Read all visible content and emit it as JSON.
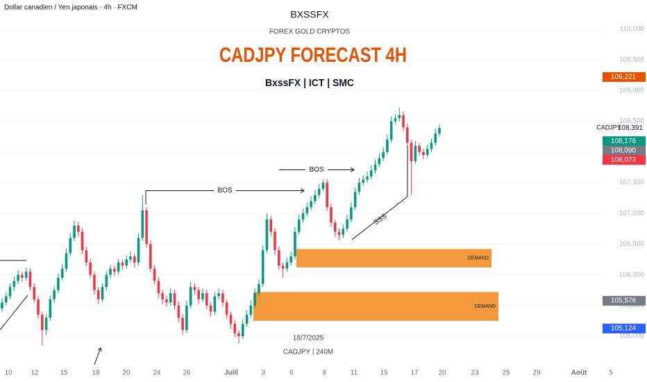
{
  "chart_data": {
    "type": "candlestick",
    "symbol_line": "Dollar canadien / Yen japonais · 4h · FXCM",
    "title": "CADJPY FORECAST 4H",
    "brand": "BXSSFX",
    "brand_subtitle": "FOREX GOLD CRYPTOS",
    "subtitle": "BxssFX | ICT | SMC",
    "footer_date": "18/7/2025",
    "footer_symbol": "CADJPY | 240M",
    "up_color": "#089981",
    "down_color": "#f23645",
    "grid": true,
    "ylim": [
      104.593,
      110.475
    ],
    "yticks": [
      {
        "value": 105,
        "label": "105,000"
      },
      {
        "value": 105.5,
        "label": "105,500"
      },
      {
        "value": 106,
        "label": "106,000"
      },
      {
        "value": 106.5,
        "label": "106,500"
      },
      {
        "value": 107,
        "label": "107,000"
      },
      {
        "value": 107.5,
        "label": "107,500"
      },
      {
        "value": 108,
        "label": "108,000"
      },
      {
        "value": 108.5,
        "label": "108,500"
      },
      {
        "value": 109,
        "label": "109,000"
      },
      {
        "value": 109.5,
        "label": "109,500"
      },
      {
        "value": 110,
        "label": "110,000"
      }
    ],
    "x_labels": [
      "10",
      "12",
      "15",
      "18",
      "20",
      "24",
      "26",
      "Juill",
      "3",
      "6",
      "9",
      "11",
      "15",
      "17",
      "20",
      "23",
      "25",
      "29",
      "Août",
      "5"
    ],
    "ohlc": [
      [
        105.45,
        105.62,
        105.4,
        105.55
      ],
      [
        105.55,
        105.72,
        105.5,
        105.65
      ],
      [
        105.65,
        105.86,
        105.6,
        105.8
      ],
      [
        105.8,
        105.97,
        105.74,
        105.9
      ],
      [
        105.9,
        106.08,
        105.85,
        106.0
      ],
      [
        106.0,
        106.05,
        105.88,
        105.95
      ],
      [
        105.95,
        106.12,
        105.9,
        106.05
      ],
      [
        106.05,
        106.1,
        105.74,
        105.8
      ],
      [
        105.8,
        105.86,
        105.54,
        105.6
      ],
      [
        105.6,
        105.66,
        105.28,
        105.35
      ],
      [
        105.35,
        105.4,
        104.85,
        105.1
      ],
      [
        105.1,
        105.36,
        105.02,
        105.3
      ],
      [
        105.3,
        105.66,
        105.25,
        105.6
      ],
      [
        105.6,
        105.82,
        105.54,
        105.75
      ],
      [
        105.75,
        106.02,
        105.7,
        105.95
      ],
      [
        105.95,
        106.18,
        105.9,
        106.1
      ],
      [
        106.1,
        106.42,
        106.05,
        106.35
      ],
      [
        106.35,
        106.68,
        106.3,
        106.6
      ],
      [
        106.6,
        106.88,
        106.55,
        106.8
      ],
      [
        106.8,
        106.86,
        106.62,
        106.7
      ],
      [
        106.7,
        106.76,
        106.34,
        106.4
      ],
      [
        106.4,
        106.46,
        106.14,
        106.2
      ],
      [
        106.2,
        106.26,
        105.94,
        106.0
      ],
      [
        106.0,
        106.06,
        105.68,
        105.75
      ],
      [
        105.75,
        105.8,
        105.52,
        105.6
      ],
      [
        105.6,
        105.86,
        105.55,
        105.8
      ],
      [
        105.8,
        106.06,
        105.75,
        106.0
      ],
      [
        106.0,
        106.16,
        105.94,
        106.1
      ],
      [
        106.1,
        106.15,
        105.98,
        106.05
      ],
      [
        106.05,
        106.26,
        106.0,
        106.2
      ],
      [
        106.2,
        106.25,
        106.08,
        106.15
      ],
      [
        106.15,
        106.32,
        106.1,
        106.25
      ],
      [
        106.25,
        106.38,
        106.2,
        106.3
      ],
      [
        106.3,
        106.35,
        106.12,
        106.2
      ],
      [
        106.2,
        106.68,
        106.15,
        106.6
      ],
      [
        106.6,
        107.3,
        106.55,
        107.05
      ],
      [
        107.05,
        107.1,
        106.44,
        106.5
      ],
      [
        106.5,
        106.56,
        106.04,
        106.1
      ],
      [
        106.1,
        106.16,
        105.84,
        105.9
      ],
      [
        105.9,
        105.96,
        105.62,
        105.7
      ],
      [
        105.7,
        105.76,
        105.52,
        105.6
      ],
      [
        105.6,
        105.66,
        105.48,
        105.55
      ],
      [
        105.55,
        105.78,
        105.5,
        105.7
      ],
      [
        105.7,
        105.76,
        105.44,
        105.5
      ],
      [
        105.5,
        105.56,
        105.22,
        105.3
      ],
      [
        105.3,
        105.36,
        105.02,
        105.1
      ],
      [
        105.1,
        105.58,
        105.05,
        105.5
      ],
      [
        105.5,
        105.88,
        105.45,
        105.8
      ],
      [
        105.8,
        105.86,
        105.68,
        105.75
      ],
      [
        105.75,
        105.8,
        105.52,
        105.6
      ],
      [
        105.6,
        105.78,
        105.55,
        105.7
      ],
      [
        105.7,
        105.76,
        105.44,
        105.5
      ],
      [
        105.5,
        105.56,
        105.32,
        105.4
      ],
      [
        105.4,
        105.72,
        105.35,
        105.65
      ],
      [
        105.65,
        105.78,
        105.6,
        105.7
      ],
      [
        105.7,
        105.76,
        105.48,
        105.55
      ],
      [
        105.55,
        105.6,
        105.28,
        105.35
      ],
      [
        105.35,
        105.4,
        105.12,
        105.2
      ],
      [
        105.2,
        105.26,
        104.98,
        105.05
      ],
      [
        105.05,
        105.1,
        104.88,
        105.0
      ],
      [
        105.0,
        105.28,
        104.95,
        105.2
      ],
      [
        105.2,
        105.42,
        105.15,
        105.35
      ],
      [
        105.35,
        105.58,
        105.3,
        105.5
      ],
      [
        105.5,
        105.78,
        105.45,
        105.7
      ],
      [
        105.7,
        105.92,
        105.65,
        105.85
      ],
      [
        105.85,
        106.48,
        105.8,
        106.4
      ],
      [
        106.4,
        107.0,
        106.35,
        106.9
      ],
      [
        106.9,
        106.96,
        106.62,
        106.7
      ],
      [
        106.7,
        106.76,
        106.32,
        106.4
      ],
      [
        106.4,
        106.46,
        106.08,
        106.15
      ],
      [
        106.15,
        106.2,
        105.95,
        106.1
      ],
      [
        106.1,
        106.28,
        106.05,
        106.2
      ],
      [
        106.2,
        106.38,
        106.15,
        106.3
      ],
      [
        106.3,
        106.78,
        106.25,
        106.7
      ],
      [
        106.7,
        106.98,
        106.65,
        106.9
      ],
      [
        106.9,
        107.08,
        106.85,
        107.0
      ],
      [
        107.0,
        107.18,
        106.95,
        107.1
      ],
      [
        107.1,
        107.28,
        107.05,
        107.2
      ],
      [
        107.2,
        107.38,
        107.15,
        107.3
      ],
      [
        107.3,
        107.48,
        107.25,
        107.4
      ],
      [
        107.4,
        107.55,
        107.35,
        107.5
      ],
      [
        107.5,
        107.56,
        107.04,
        107.1
      ],
      [
        107.1,
        107.16,
        106.78,
        106.85
      ],
      [
        106.85,
        106.9,
        106.62,
        106.7
      ],
      [
        106.7,
        106.76,
        106.56,
        106.65
      ],
      [
        106.65,
        106.82,
        106.6,
        106.75
      ],
      [
        106.75,
        106.98,
        106.7,
        106.9
      ],
      [
        106.9,
        107.18,
        106.85,
        107.1
      ],
      [
        107.1,
        107.42,
        107.05,
        107.35
      ],
      [
        107.35,
        107.58,
        107.3,
        107.5
      ],
      [
        107.5,
        107.62,
        107.45,
        107.55
      ],
      [
        107.55,
        107.68,
        107.5,
        107.6
      ],
      [
        107.6,
        107.78,
        107.55,
        107.7
      ],
      [
        107.7,
        107.88,
        107.65,
        107.8
      ],
      [
        107.8,
        107.98,
        107.75,
        107.9
      ],
      [
        107.9,
        108.08,
        107.85,
        108.0
      ],
      [
        108.0,
        108.28,
        107.95,
        108.2
      ],
      [
        108.2,
        108.58,
        108.15,
        108.5
      ],
      [
        108.5,
        108.62,
        108.45,
        108.55
      ],
      [
        108.55,
        108.72,
        108.5,
        108.6
      ],
      [
        108.6,
        108.66,
        108.34,
        108.4
      ],
      [
        108.4,
        108.46,
        108.08,
        108.15
      ],
      [
        108.15,
        108.2,
        107.3,
        107.85
      ],
      [
        107.85,
        108.18,
        107.8,
        108.1
      ],
      [
        108.1,
        108.15,
        107.94,
        108.0
      ],
      [
        108.0,
        108.05,
        107.88,
        107.95
      ],
      [
        107.95,
        108.12,
        107.9,
        108.05
      ],
      [
        108.05,
        108.22,
        108.0,
        108.15
      ],
      [
        108.15,
        108.38,
        108.1,
        108.3
      ],
      [
        108.3,
        108.45,
        108.25,
        108.39
      ]
    ],
    "zones": [
      {
        "label": "DEMAND",
        "top": 106.42,
        "bottom": 106.12,
        "color": "#f59a3c"
      },
      {
        "label": "DEMAND",
        "top": 105.72,
        "bottom": 105.25,
        "color": "#f59a3c"
      }
    ],
    "bos": [
      {
        "label": "BOS",
        "level": 107.37
      },
      {
        "label": "BOS",
        "level": 107.71
      }
    ],
    "sss_label": "SSS",
    "price_tags": [
      {
        "value": 109.221,
        "label": "109,221",
        "color": "#e65100"
      },
      {
        "value": 108.391,
        "label": "108,391",
        "name": "CADJPY"
      },
      {
        "value": 108.176,
        "label": "108,176",
        "color": "#089981"
      },
      {
        "value": 108.09,
        "label": "108,090",
        "color": "#787b86"
      },
      {
        "value": 108.073,
        "label": "108,073",
        "color": "#f23645"
      },
      {
        "value": 105.576,
        "label": "105,576",
        "color": "#787b86"
      },
      {
        "value": 105.124,
        "label": "105,124",
        "color": "#2962ff"
      }
    ]
  }
}
